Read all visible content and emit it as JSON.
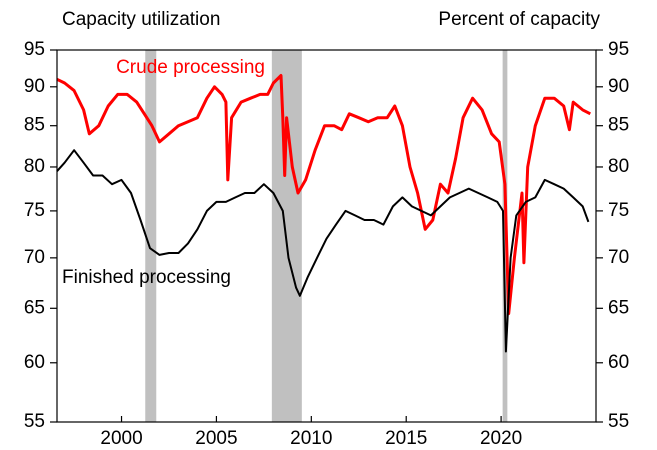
{
  "chart_data": {
    "type": "line",
    "y_label_left": "Capacity utilization",
    "y_label_right": "Percent of capacity",
    "log_scale": true,
    "xlim": [
      1996.6,
      2025
    ],
    "xticks": [
      2000,
      2005,
      2010,
      2015,
      2020
    ],
    "ylim": [
      55,
      95
    ],
    "yticks": [
      55,
      60,
      65,
      70,
      75,
      80,
      85,
      90,
      95
    ],
    "y2lim": [
      55,
      95
    ],
    "y2ticks": [
      55,
      60,
      65,
      70,
      75,
      80,
      85,
      90,
      95
    ],
    "recessions": [
      [
        2001.25,
        2001.83
      ],
      [
        2007.92,
        2009.5
      ],
      [
        2020.08,
        2020.33
      ]
    ],
    "recession_color": "#c0c0c0",
    "series": [
      {
        "name": "Crude processing",
        "color": "#ff0000",
        "x": [
          1996.6,
          1997,
          1997.5,
          1998,
          1998.3,
          1998.8,
          1999.3,
          1999.8,
          2000.3,
          2000.8,
          2001.2,
          2001.6,
          2002,
          2002.5,
          2003,
          2003.5,
          2004,
          2004.5,
          2004.9,
          2005.3,
          2005.5,
          2005.6,
          2005.8,
          2006.3,
          2006.8,
          2007.3,
          2007.7,
          2008,
          2008.4,
          2008.5,
          2008.6,
          2008.7,
          2009,
          2009.3,
          2009.7,
          2010.2,
          2010.7,
          2011.2,
          2011.6,
          2012,
          2012.5,
          2013,
          2013.5,
          2014,
          2014.4,
          2014.8,
          2015.2,
          2015.6,
          2016,
          2016.4,
          2016.8,
          2017.2,
          2017.6,
          2018,
          2018.5,
          2019,
          2019.5,
          2019.9,
          2020.2,
          2020.4,
          2020.7,
          2021.1,
          2021.2,
          2021.4,
          2021.8,
          2022.3,
          2022.8,
          2023.3,
          2023.6,
          2023.8,
          2024.3,
          2024.7
        ],
        "values": [
          91,
          90.5,
          89.5,
          87,
          84,
          85,
          87.5,
          89,
          89,
          88,
          86.5,
          85,
          83,
          84,
          85,
          85.5,
          86,
          88.5,
          90,
          89,
          88,
          78.5,
          86,
          88,
          88.5,
          89,
          89,
          90.5,
          91.5,
          86,
          79,
          86,
          80,
          77,
          78.5,
          82,
          85,
          85,
          84.5,
          86.5,
          86,
          85.5,
          86,
          86,
          87.5,
          85,
          80,
          77,
          73,
          74,
          78,
          77,
          81,
          86,
          88.5,
          87,
          84,
          83,
          78,
          64.5,
          70,
          77,
          69.5,
          80,
          85,
          88.5,
          88.5,
          87.5,
          84.5,
          88,
          87,
          86.5
        ]
      },
      {
        "name": "Finished processing",
        "color": "#000000",
        "x": [
          1996.6,
          1997,
          1997.5,
          1998,
          1998.5,
          1999,
          1999.5,
          2000,
          2000.5,
          2001,
          2001.5,
          2002,
          2002.5,
          2003,
          2003.5,
          2004,
          2004.5,
          2005,
          2005.5,
          2006,
          2006.5,
          2007,
          2007.5,
          2008,
          2008.5,
          2008.8,
          2009.2,
          2009.4,
          2009.8,
          2010.3,
          2010.8,
          2011.3,
          2011.8,
          2012.3,
          2012.8,
          2013.3,
          2013.8,
          2014.3,
          2014.8,
          2015.3,
          2015.8,
          2016.3,
          2016.8,
          2017.3,
          2017.8,
          2018.3,
          2018.8,
          2019.3,
          2019.8,
          2020.1,
          2020.25,
          2020.5,
          2020.8,
          2021.3,
          2021.8,
          2022.3,
          2022.8,
          2023.3,
          2023.8,
          2024.3,
          2024.6
        ],
        "values": [
          79.5,
          80.5,
          82,
          80.5,
          79,
          79,
          78,
          78.5,
          77,
          74,
          71,
          70.3,
          70.5,
          70.5,
          71.5,
          73,
          75,
          76,
          76,
          76.5,
          77,
          77,
          78,
          77,
          75,
          70,
          67,
          66.2,
          68,
          70,
          72,
          73.5,
          75,
          74.5,
          74,
          74,
          73.5,
          75.5,
          76.5,
          75.5,
          75,
          74.5,
          75.5,
          76.5,
          77,
          77.5,
          77,
          76.5,
          76,
          75,
          61,
          70,
          74.5,
          76,
          76.5,
          78.5,
          78,
          77.5,
          76.5,
          75.5,
          73.8
        ]
      }
    ]
  }
}
